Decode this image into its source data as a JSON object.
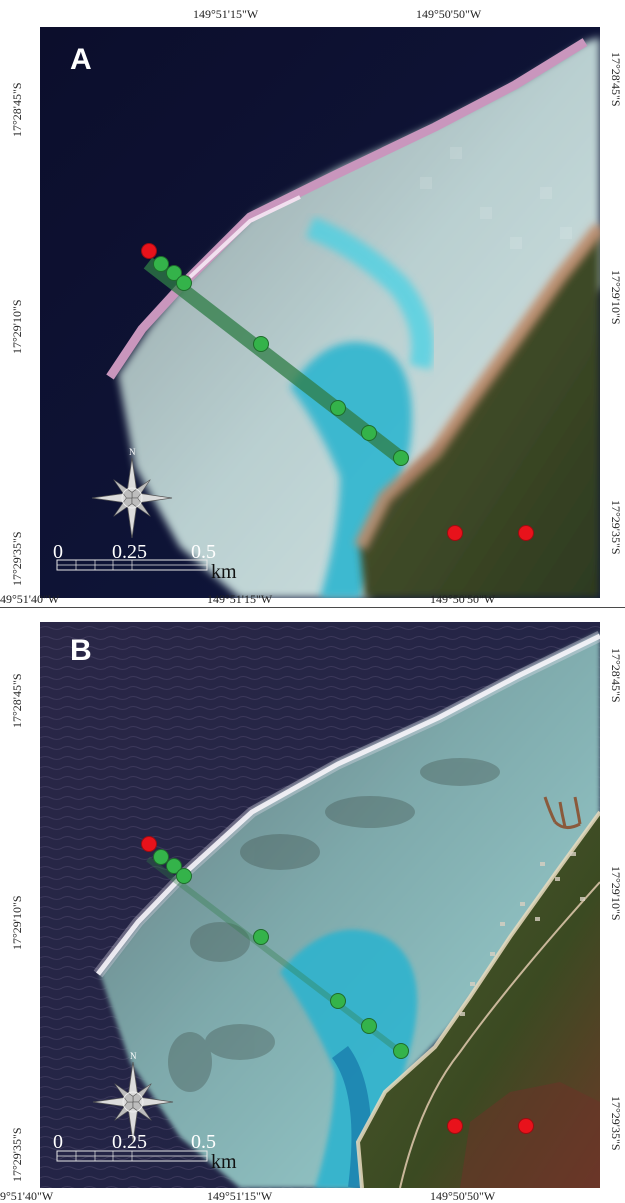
{
  "panels": [
    {
      "letter": "A",
      "top_labels": [
        "149°51'15\"W",
        "149°50'50\"W"
      ],
      "bottom_labels": [
        "49°51'40\"W",
        "149°51'15\"W",
        "149°50'50\"W"
      ],
      "left_labels": [
        "17°28'45\"S",
        "17°29'10\"S",
        "17°29'35\"S"
      ],
      "right_labels": [
        "17°28'45\"S",
        "17°29'10\"S",
        "17°29'35\"S"
      ]
    },
    {
      "letter": "B",
      "top_labels": [],
      "bottom_labels": [
        "9°51'40\"W",
        "149°51'15\"W",
        "149°50'50\"W"
      ],
      "left_labels": [
        "17°28'45\"S",
        "17°29'10\"S",
        "17°29'35\"S"
      ],
      "right_labels": [
        "17°28'45\"S",
        "17°29'10\"S",
        "17°29'35\"S"
      ]
    }
  ],
  "scale_bar": {
    "ticks": [
      "0",
      "0.25",
      "0.5"
    ],
    "unit": "km"
  },
  "compass_label": "N",
  "colors": {
    "station_red": "#e8121b",
    "station_green": "#34b34a",
    "transect_green": "#2f7d46"
  }
}
